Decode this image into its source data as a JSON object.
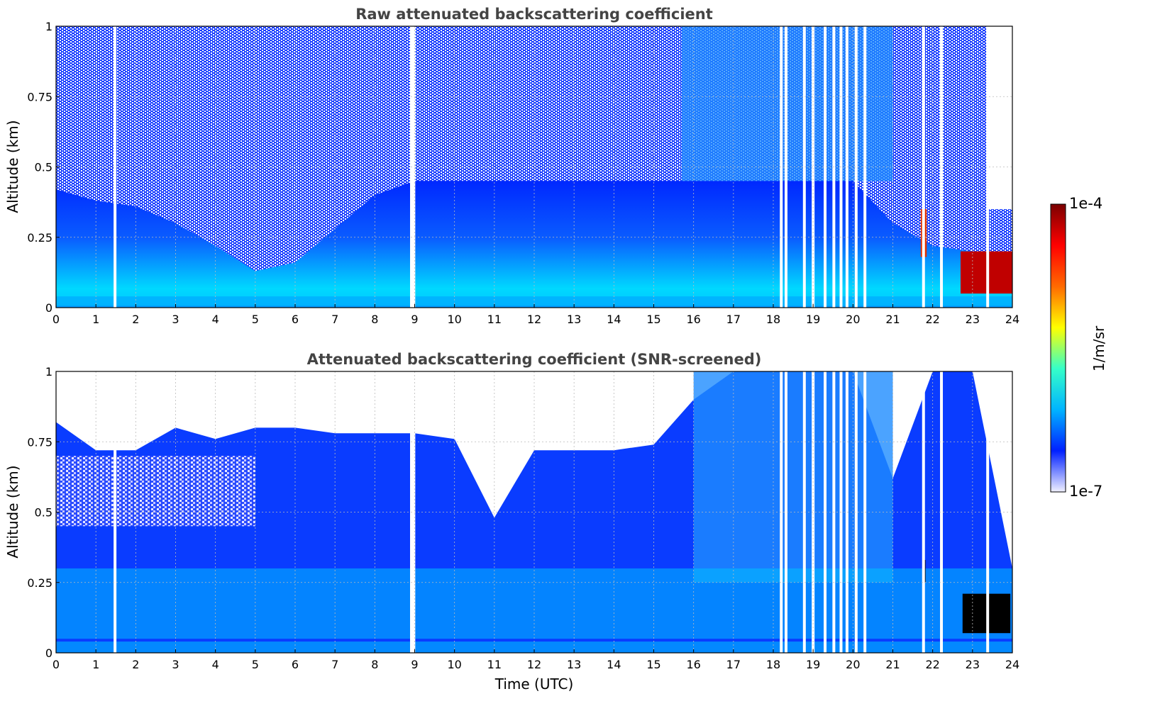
{
  "chart_data": [
    {
      "type": "heatmap",
      "title": "Raw attenuated backscattering coefficient",
      "xlabel": "",
      "ylabel": "Altitude (km)",
      "xlim": [
        0,
        24
      ],
      "ylim": [
        0,
        1
      ],
      "xticks": [
        "0",
        "1",
        "2",
        "3",
        "4",
        "5",
        "6",
        "7",
        "8",
        "9",
        "10",
        "11",
        "12",
        "13",
        "14",
        "15",
        "16",
        "17",
        "18",
        "19",
        "20",
        "21",
        "22",
        "23",
        "24"
      ],
      "yticks": [
        "0",
        "0.25",
        "0.5",
        "0.75",
        "1"
      ],
      "grid": true,
      "colormap": "jet",
      "log_scale": true,
      "boundary_layer_top_km": [
        [
          0,
          0.42
        ],
        [
          1,
          0.38
        ],
        [
          2,
          0.36
        ],
        [
          3,
          0.3
        ],
        [
          4,
          0.22
        ],
        [
          5,
          0.13
        ],
        [
          6,
          0.16
        ],
        [
          7,
          0.28
        ],
        [
          8,
          0.4
        ],
        [
          9,
          0.45
        ],
        [
          10,
          0.45
        ],
        [
          11,
          0.45
        ],
        [
          12,
          0.45
        ],
        [
          13,
          0.45
        ],
        [
          14,
          0.45
        ],
        [
          15,
          0.45
        ],
        [
          16,
          0.45
        ],
        [
          17,
          0.45
        ],
        [
          18,
          0.45
        ],
        [
          19,
          0.45
        ],
        [
          20,
          0.45
        ],
        [
          21,
          0.3
        ],
        [
          22,
          0.22
        ],
        [
          23,
          0.2
        ],
        [
          24,
          0.18
        ]
      ],
      "missing_profile_times_utc": [
        1.48,
        8.92,
        8.98,
        18.2,
        18.32,
        18.78,
        19.0,
        19.3,
        19.52,
        19.7,
        19.85,
        20.08,
        20.3,
        21.77,
        22.22,
        23.38
      ],
      "cloud_features": [
        {
          "time_range": [
            21.7,
            21.85
          ],
          "altitude_range_km": [
            0.18,
            0.35
          ],
          "level": "high"
        },
        {
          "time_range": [
            22.7,
            24.0
          ],
          "altitude_range_km": [
            0.05,
            0.2
          ],
          "level": "very high"
        }
      ]
    },
    {
      "type": "heatmap",
      "title": "Attenuated backscattering coefficient (SNR-screened)",
      "xlabel": "Time (UTC)",
      "ylabel": "Altitude (km)",
      "xlim": [
        0,
        24
      ],
      "ylim": [
        0,
        1
      ],
      "xticks": [
        "0",
        "1",
        "2",
        "3",
        "4",
        "5",
        "6",
        "7",
        "8",
        "9",
        "10",
        "11",
        "12",
        "13",
        "14",
        "15",
        "16",
        "17",
        "18",
        "19",
        "20",
        "21",
        "22",
        "23",
        "24"
      ],
      "yticks": [
        "0",
        "0.25",
        "0.5",
        "0.75",
        "1"
      ],
      "grid": true,
      "colormap": "jet",
      "log_scale": true,
      "screened_top_km": [
        [
          0,
          0.82
        ],
        [
          1,
          0.72
        ],
        [
          2,
          0.72
        ],
        [
          3,
          0.8
        ],
        [
          4,
          0.76
        ],
        [
          5,
          0.8
        ],
        [
          6,
          0.8
        ],
        [
          7,
          0.78
        ],
        [
          8,
          0.78
        ],
        [
          9,
          0.78
        ],
        [
          10,
          0.76
        ],
        [
          11,
          0.48
        ],
        [
          12,
          0.72
        ],
        [
          13,
          0.72
        ],
        [
          14,
          0.72
        ],
        [
          15,
          0.74
        ],
        [
          16,
          0.9
        ],
        [
          17,
          1.0
        ],
        [
          18,
          1.0
        ],
        [
          19,
          1.0
        ],
        [
          20,
          1.0
        ],
        [
          21,
          0.62
        ],
        [
          22,
          1.0
        ],
        [
          23,
          1.0
        ],
        [
          24,
          0.3
        ]
      ],
      "missing_profile_times_utc": [
        1.48,
        8.92,
        8.98,
        18.2,
        18.32,
        18.78,
        19.0,
        19.3,
        19.52,
        19.7,
        19.85,
        20.08,
        20.3,
        21.77,
        22.22,
        23.38
      ],
      "saturated_features": [
        {
          "time_range": [
            21.75,
            21.82
          ],
          "altitude_range_km": [
            0.25,
            0.33
          ]
        },
        {
          "time_range": [
            22.75,
            23.95
          ],
          "altitude_range_km": [
            0.07,
            0.21
          ]
        }
      ]
    }
  ],
  "colorbar": {
    "label": "1/m/sr",
    "max_label": "1e-4",
    "min_label": "1e-7",
    "range": [
      1e-07,
      0.0001
    ],
    "scale": "log",
    "colors": [
      "#f0f0ff",
      "#0020ff",
      "#00b4ff",
      "#36ffc8",
      "#ffff00",
      "#ff6a00",
      "#ff0000",
      "#7a0000"
    ]
  }
}
